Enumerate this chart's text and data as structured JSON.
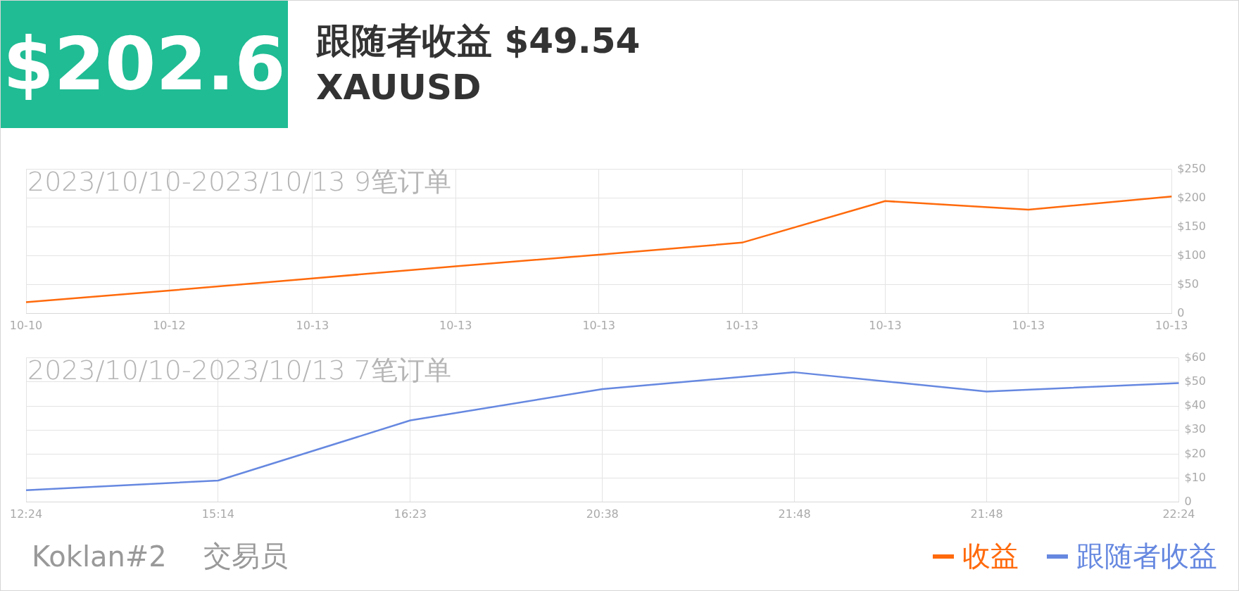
{
  "chart_data": [
    {
      "type": "line",
      "title": "$202.6",
      "subtitle": "2023/10/10-2023/10/13 9笔订单",
      "annotations": [
        "跟随者收益 $49.54",
        "XAUUSD"
      ],
      "categories": [
        "10-10",
        "10-12",
        "10-13",
        "10-13",
        "10-13",
        "10-13",
        "10-13",
        "10-13",
        "10-13"
      ],
      "series": [
        {
          "name": "收益",
          "color": "#ff6a0c",
          "values": [
            20,
            40,
            61,
            82,
            102,
            123,
            195,
            180,
            203
          ]
        }
      ],
      "ylim": [
        0,
        250
      ],
      "yticks": [
        {
          "value": 0,
          "label": "0"
        },
        {
          "value": 50,
          "label": "$50"
        },
        {
          "value": 100,
          "label": "$100"
        },
        {
          "value": 150,
          "label": "$150"
        },
        {
          "value": 200,
          "label": "$200"
        },
        {
          "value": 250,
          "label": "$250"
        }
      ],
      "grid": true,
      "marker": "none",
      "legend": "bottom right"
    },
    {
      "type": "line",
      "subtitle": "2023/10/10-2023/10/13 7笔订单",
      "annotations": [
        "Koklan#2",
        "交易员"
      ],
      "categories": [
        "12:24",
        "15:14",
        "16:23",
        "20:38",
        "21:48",
        "21:48",
        "22:24"
      ],
      "series": [
        {
          "name": "跟随者收益",
          "color": "#6688e0",
          "values": [
            5,
            9,
            34,
            47,
            54,
            46,
            49.5
          ]
        }
      ],
      "ylim": [
        0,
        60
      ],
      "yticks": [
        {
          "value": 0,
          "label": "0"
        },
        {
          "value": 10,
          "label": "$10"
        },
        {
          "value": 20,
          "label": "$20"
        },
        {
          "value": 30,
          "label": "$30"
        },
        {
          "value": 40,
          "label": "$40"
        },
        {
          "value": 50,
          "label": "$50"
        },
        {
          "value": 60,
          "label": "$60"
        }
      ],
      "grid": true,
      "marker": "none",
      "legend": "bottom right"
    }
  ]
}
